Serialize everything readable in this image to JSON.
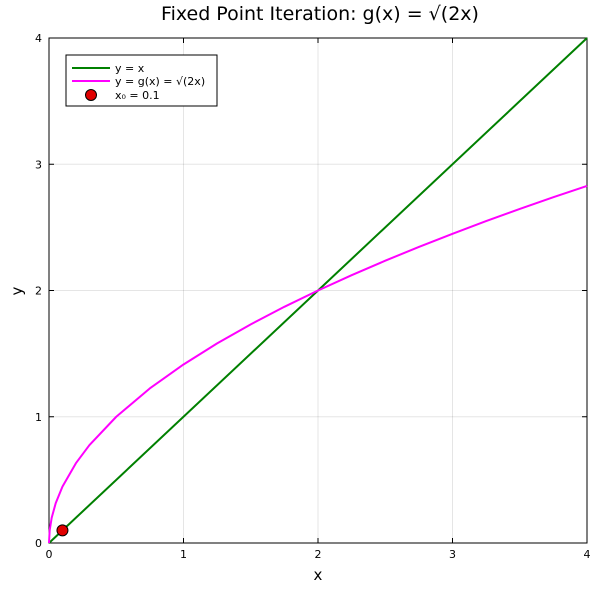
{
  "chart_data": {
    "type": "line",
    "title": "Fixed Point Iteration: g(x) = √(2x)",
    "xlabel": "x",
    "ylabel": "y",
    "xlim": [
      0,
      4
    ],
    "ylim": [
      0,
      4
    ],
    "xticks": [
      "0",
      "1",
      "2",
      "3",
      "4"
    ],
    "yticks": [
      "0",
      "1",
      "2",
      "3",
      "4"
    ],
    "grid": true,
    "legend_position": "top-left",
    "series": [
      {
        "name": "y = x",
        "color": "#008000",
        "x": [
          0,
          4
        ],
        "y": [
          0,
          4
        ]
      },
      {
        "name": "y = g(x) = √(2x)",
        "color": "#ff00ff",
        "x": [
          0,
          0.005,
          0.02,
          0.05,
          0.1,
          0.2,
          0.3,
          0.5,
          0.75,
          1,
          1.25,
          1.5,
          1.75,
          2,
          2.25,
          2.5,
          2.75,
          3,
          3.25,
          3.5,
          3.75,
          4
        ],
        "y": [
          0,
          0.1,
          0.2,
          0.316,
          0.447,
          0.632,
          0.775,
          1,
          1.225,
          1.414,
          1.581,
          1.732,
          1.871,
          2,
          2.121,
          2.236,
          2.345,
          2.449,
          2.55,
          2.646,
          2.739,
          2.828
        ]
      }
    ],
    "points": [
      {
        "name": "x₀ = 0.1",
        "color": "#e00000",
        "x": 0.1,
        "y": 0.1
      }
    ]
  }
}
